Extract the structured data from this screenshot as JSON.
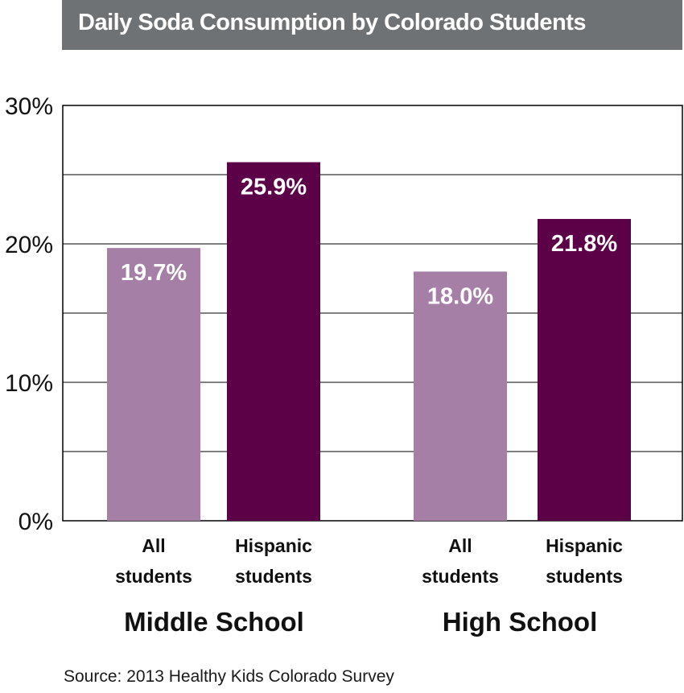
{
  "title": "Daily Soda Consumption by Colorado Students",
  "source": "Source: 2013 Healthy Kids Colorado Survey",
  "colors": {
    "title_bg": "#6f7274",
    "all_students": "#a67fa6",
    "hispanic_students": "#5c0048",
    "gridline": "#000000"
  },
  "chart_data": {
    "type": "bar",
    "title": "Daily Soda Consumption by Colorado Students",
    "groups": [
      "Middle School",
      "High School"
    ],
    "categories": [
      "All students",
      "Hispanic students"
    ],
    "series": [
      {
        "values": [
          19.7,
          18.0
        ],
        "color": "#a67fa6"
      },
      {
        "values": [
          25.9,
          21.8
        ],
        "color": "#5c0048"
      }
    ],
    "data_labels": [
      [
        "19.7%",
        "25.9%"
      ],
      [
        "18.0%",
        "21.8%"
      ]
    ],
    "y_ticks": [
      "0%",
      "10%",
      "20%",
      "30%"
    ],
    "ylim": [
      0,
      30
    ],
    "grid": true
  }
}
